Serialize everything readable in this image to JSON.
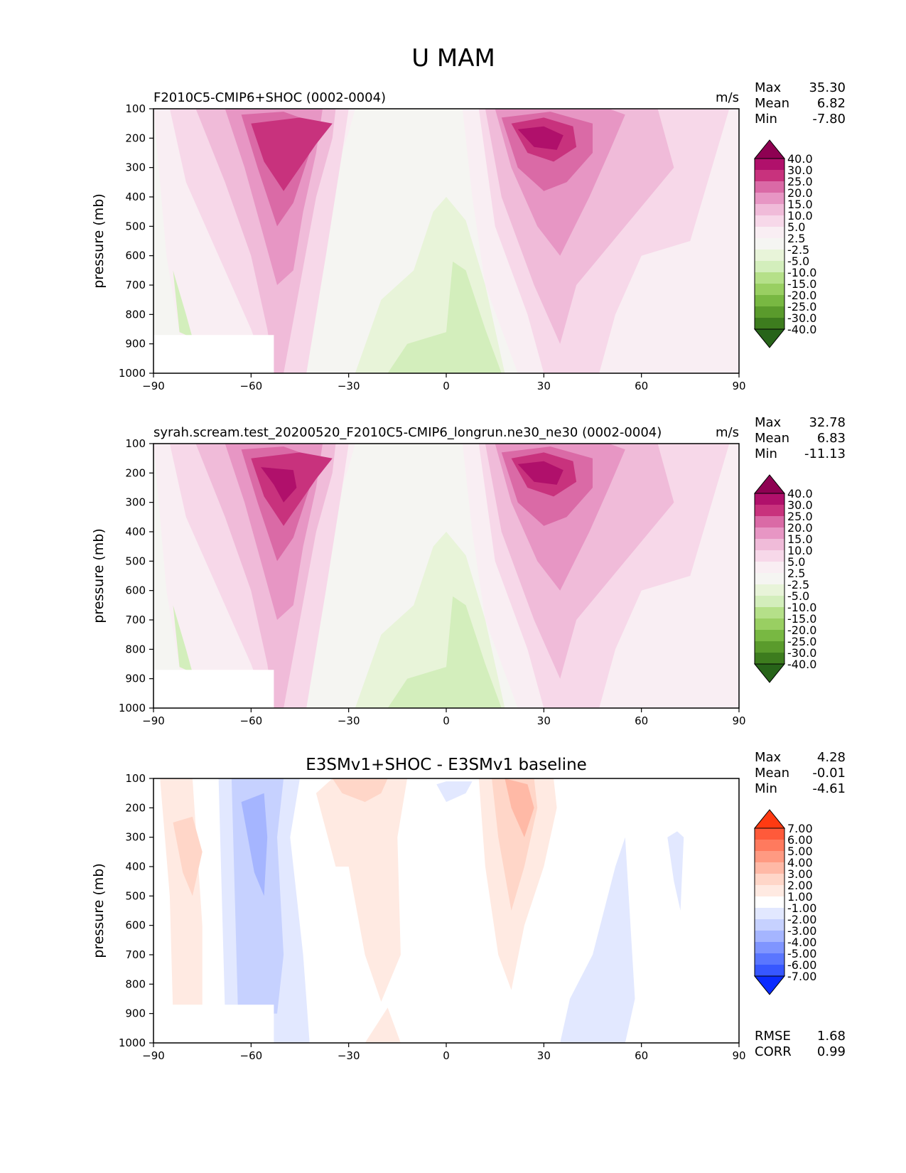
{
  "title": "U MAM",
  "axes": {
    "ylabel": "pressure (mb)",
    "xticks": [
      "−90",
      "−60",
      "−30",
      "0",
      "30",
      "60",
      "90"
    ],
    "yticks": [
      "100",
      "200",
      "300",
      "400",
      "500",
      "600",
      "700",
      "800",
      "900",
      "1000"
    ]
  },
  "chart_data": [
    {
      "type": "heatmap",
      "title": "F2010C5-CMIP6+SHOC (0002-0004)",
      "units": "m/s",
      "xlabel": "",
      "ylabel": "pressure (mb)",
      "xlim": [
        -90,
        90
      ],
      "ylim": [
        1000,
        100
      ],
      "stats": {
        "max_label": "Max",
        "max": "35.30",
        "mean_label": "Mean",
        "mean": "6.82",
        "min_label": "Min",
        "min": "-7.80"
      },
      "levels": [
        "40.0",
        "30.0",
        "25.0",
        "20.0",
        "15.0",
        "10.0",
        "5.0",
        "2.5",
        "-2.5",
        "-5.0",
        "-10.0",
        "-15.0",
        "-20.0",
        "-25.0",
        "-30.0",
        "-40.0"
      ],
      "colors": [
        "#8e0152",
        "#b0106b",
        "#c8327d",
        "#da6aa6",
        "#e796c4",
        "#f0bbd9",
        "#f7d8e9",
        "#f9eef3",
        "#f5f5f2",
        "#e8f4d9",
        "#d3eebc",
        "#b5e089",
        "#99cf62",
        "#78b842",
        "#5a9b2c",
        "#3d7c1e",
        "#276419"
      ]
    },
    {
      "type": "heatmap",
      "title": "syrah.scream.test_20200520_F2010C5-CMIP6_longrun.ne30_ne30 (0002-0004)",
      "units": "m/s",
      "xlabel": "",
      "ylabel": "pressure (mb)",
      "xlim": [
        -90,
        90
      ],
      "ylim": [
        1000,
        100
      ],
      "stats": {
        "max_label": "Max",
        "max": "32.78",
        "mean_label": "Mean",
        "mean": "6.83",
        "min_label": "Min",
        "min": "-11.13"
      },
      "levels": [
        "40.0",
        "30.0",
        "25.0",
        "20.0",
        "15.0",
        "10.0",
        "5.0",
        "2.5",
        "-2.5",
        "-5.0",
        "-10.0",
        "-15.0",
        "-20.0",
        "-25.0",
        "-30.0",
        "-40.0"
      ],
      "colors": [
        "#8e0152",
        "#b0106b",
        "#c8327d",
        "#da6aa6",
        "#e796c4",
        "#f0bbd9",
        "#f7d8e9",
        "#f9eef3",
        "#f5f5f2",
        "#e8f4d9",
        "#d3eebc",
        "#b5e089",
        "#99cf62",
        "#78b842",
        "#5a9b2c",
        "#3d7c1e",
        "#276419"
      ]
    },
    {
      "type": "heatmap",
      "title": "E3SMv1+SHOC - E3SMv1 baseline",
      "units": "",
      "xlabel": "",
      "ylabel": "pressure (mb)",
      "xlim": [
        -90,
        90
      ],
      "ylim": [
        1000,
        100
      ],
      "stats": {
        "max_label": "Max",
        "max": "4.28",
        "mean_label": "Mean",
        "mean": "-0.01",
        "min_label": "Min",
        "min": "-4.61"
      },
      "extra": {
        "rmse_label": "RMSE",
        "rmse": "1.68",
        "corr_label": "CORR",
        "corr": "0.99"
      },
      "levels": [
        "7.00",
        "6.00",
        "5.00",
        "4.00",
        "3.00",
        "2.00",
        "1.00",
        "-1.00",
        "-2.00",
        "-3.00",
        "-4.00",
        "-5.00",
        "-6.00",
        "-7.00"
      ],
      "colors": [
        "#ff3a12",
        "#ff5a3a",
        "#ff7a5e",
        "#ff9a82",
        "#ffb9a6",
        "#ffd6c8",
        "#ffeae2",
        "#ffffff",
        "#e2e8ff",
        "#c6d1ff",
        "#a5b5ff",
        "#7f95ff",
        "#5a76ff",
        "#3757ff",
        "#0a2bff"
      ]
    }
  ]
}
